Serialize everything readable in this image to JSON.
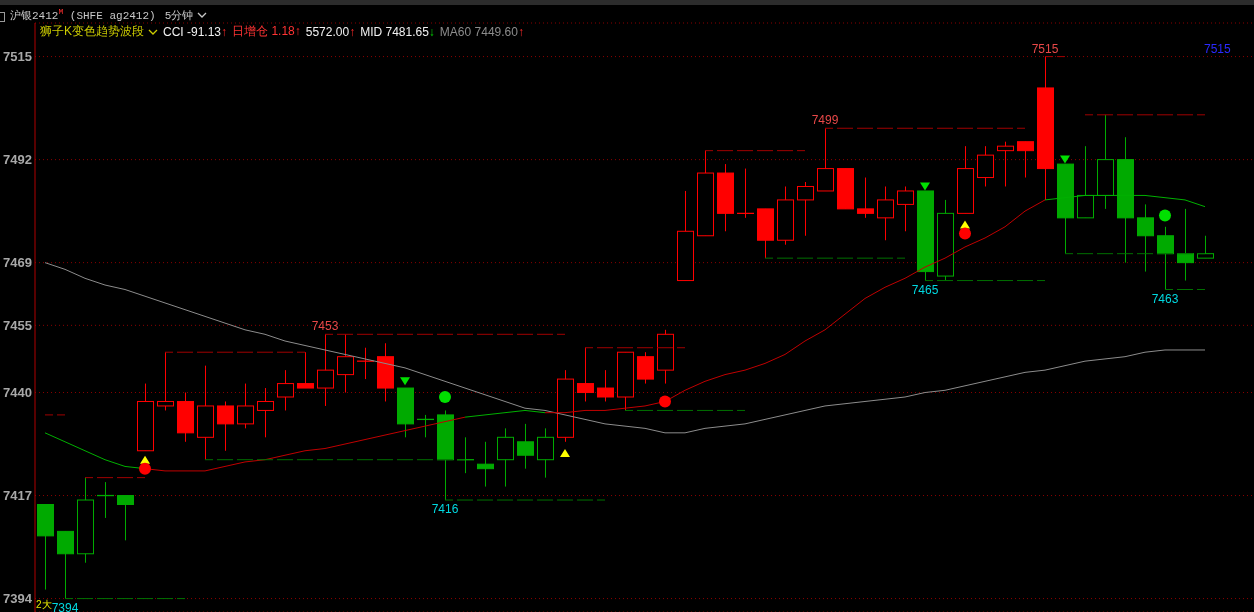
{
  "chart_data": {
    "type": "candlestick",
    "title": "沪银2412$^{M}$ (SHFE ag2412)",
    "subtitle": "5分钟",
    "categories": [
      null,
      null,
      null,
      null,
      null,
      null,
      null,
      null,
      null,
      null,
      null,
      null,
      null,
      null,
      null,
      null,
      null,
      null,
      null,
      null,
      null,
      null,
      null,
      null,
      null,
      null,
      null,
      null,
      null,
      null,
      null,
      null,
      null,
      null,
      null,
      null,
      null,
      null,
      null,
      null,
      null,
      null,
      null,
      null,
      null,
      null,
      null,
      null,
      null,
      null,
      null,
      null,
      null,
      null,
      null,
      null,
      null,
      null,
      null
    ],
    "ohlc": [
      [
        7415,
        7415,
        7396,
        7408
      ],
      [
        7409,
        7409,
        7394,
        7404
      ],
      [
        7404,
        7421,
        7402,
        7416
      ],
      [
        7417,
        7420,
        7412,
        7417
      ],
      [
        7417,
        7417,
        7407,
        7415
      ],
      [
        7427,
        7442,
        7427,
        7438
      ],
      [
        7437,
        7449,
        7436,
        7438
      ],
      [
        7438,
        7440,
        7429,
        7431
      ],
      [
        7430,
        7446,
        7425,
        7437
      ],
      [
        7437,
        7438,
        7427,
        7433
      ],
      [
        7433,
        7442,
        7432,
        7437
      ],
      [
        7436,
        7441,
        7430,
        7438
      ],
      [
        7439,
        7445,
        7436,
        7442
      ],
      [
        7442,
        7449,
        7441,
        7441
      ],
      [
        7441,
        7453,
        7437,
        7445
      ],
      [
        7444,
        7453,
        7440,
        7448
      ],
      [
        7447,
        7450,
        7443,
        7447
      ],
      [
        7448,
        7451,
        7438,
        7441
      ],
      [
        7441,
        7441,
        7430,
        7433
      ],
      [
        7434,
        7435,
        7430,
        7434
      ],
      [
        7435,
        7436,
        7416,
        7425
      ],
      [
        7425,
        7430,
        7422,
        7425
      ],
      [
        7424,
        7429,
        7419,
        7423
      ],
      [
        7425,
        7432,
        7419,
        7430
      ],
      [
        7429,
        7433,
        7423,
        7426
      ],
      [
        7425,
        7432,
        7421,
        7430
      ],
      [
        7430,
        7445,
        7429,
        7443
      ],
      [
        7442,
        7450,
        7438,
        7440
      ],
      [
        7441,
        7445,
        7438,
        7439
      ],
      [
        7439,
        7449,
        7436,
        7449
      ],
      [
        7448,
        7449,
        7442,
        7443
      ],
      [
        7445,
        7454,
        7442,
        7453
      ],
      [
        7465,
        7485,
        7465,
        7476
      ],
      [
        7475,
        7494,
        7475,
        7489
      ],
      [
        7489,
        7491,
        7476,
        7480
      ],
      [
        7480,
        7490,
        7479,
        7480
      ],
      [
        7481,
        7481,
        7470,
        7474
      ],
      [
        7474,
        7486,
        7473,
        7483
      ],
      [
        7483,
        7487,
        7475,
        7486
      ],
      [
        7485,
        7499,
        7485,
        7490
      ],
      [
        7490,
        7490,
        7481,
        7481
      ],
      [
        7481,
        7488,
        7479,
        7480
      ],
      [
        7479,
        7486,
        7474,
        7483
      ],
      [
        7482,
        7486,
        7476,
        7485
      ],
      [
        7485,
        7485,
        7465,
        7467
      ],
      [
        7466,
        7483,
        7465,
        7480
      ],
      [
        7480,
        7495,
        7480,
        7490
      ],
      [
        7488,
        7495,
        7486,
        7493
      ],
      [
        7494,
        7496,
        7486,
        7495
      ],
      [
        7496,
        7496,
        7488,
        7494
      ],
      [
        7508,
        7515,
        7483,
        7490
      ],
      [
        7491,
        7491,
        7471,
        7479
      ],
      [
        7479,
        7495,
        7479,
        7484
      ],
      [
        7484,
        7502,
        7481,
        7492
      ],
      [
        7492,
        7497,
        7469,
        7479
      ],
      [
        7479,
        7482,
        7467,
        7475
      ],
      [
        7475,
        7477,
        7463,
        7471
      ],
      [
        7471,
        7481,
        7465,
        7469
      ],
      [
        7470,
        7475,
        7470,
        7471
      ]
    ],
    "colors": [
      "#00aa00",
      "#00aa00",
      "#00aa00",
      "#00aa00",
      "#00aa00",
      "#ff0000",
      "#ff0000",
      "#ff0000",
      "#ff0000",
      "#ff0000",
      "#ff0000",
      "#ff0000",
      "#ff0000",
      "#ff0000",
      "#ff0000",
      "#ff0000",
      "#ff0000",
      "#ff0000",
      "#00aa00",
      "#00aa00",
      "#00aa00",
      "#00aa00",
      "#00aa00",
      "#00aa00",
      "#00aa00",
      "#00aa00",
      "#ff0000",
      "#ff0000",
      "#ff0000",
      "#ff0000",
      "#ff0000",
      "#ff0000",
      "#ff0000",
      "#ff0000",
      "#ff0000",
      "#ff0000",
      "#ff0000",
      "#ff0000",
      "#ff0000",
      "#ff0000",
      "#ff0000",
      "#ff0000",
      "#ff0000",
      "#ff0000",
      "#00aa00",
      "#00aa00",
      "#ff0000",
      "#ff0000",
      "#ff0000",
      "#ff0000",
      "#ff0000",
      "#00aa00",
      "#00aa00",
      "#00aa00",
      "#00aa00",
      "#00aa00",
      "#00aa00",
      "#00aa00",
      "#00aa00"
    ],
    "series": [
      {
        "type": "line",
        "color": "#8c8c8c",
        "line_style": "solid",
        "values": [
          7469,
          7467.5,
          7465.5,
          7464,
          7463,
          7461.5,
          7460,
          7458.5,
          7457,
          7455.5,
          7454,
          7453,
          7451.5,
          7450.5,
          7449.5,
          7448.5,
          7447.5,
          7446.5,
          7445.5,
          7444,
          7442.5,
          7441,
          7439.5,
          7438,
          7436.5,
          7436,
          7435,
          7434,
          7433,
          7432.5,
          7432,
          7431,
          7431,
          7432,
          7432.5,
          7433,
          7434,
          7435,
          7436,
          7437,
          7437.5,
          7438,
          7438.5,
          7439,
          7440,
          7440.5,
          7441.5,
          7442.5,
          7443.5,
          7444.5,
          7445,
          7446,
          7447,
          7447.5,
          7448,
          7449,
          7449.5,
          7449.5,
          7449.5
        ]
      },
      {
        "type": "line",
        "color": "#c00000",
        "line_style": "solid",
        "values": [
          null,
          null,
          null,
          null,
          null,
          7423,
          7422.5,
          7422.5,
          7422.5,
          7423.5,
          7424.5,
          7425,
          7426,
          7427,
          7427.5,
          7428.5,
          7429.5,
          7430.5,
          7431.5,
          7432.5,
          7433.5,
          7434.5,
          null,
          null,
          null,
          7435.5,
          7435.5,
          7436,
          7436,
          7436.5,
          7437,
          7438,
          7440.5,
          7442.5,
          7444,
          7445,
          7446.5,
          7448.5,
          7451.5,
          7454,
          7457.5,
          7461,
          7463.5,
          7465.5,
          7468,
          7470,
          7472.5,
          7474.5,
          7477,
          7480.5,
          7483,
          null,
          null,
          null,
          null,
          null,
          null,
          null,
          null
        ]
      },
      {
        "type": "line",
        "color": "#00b000",
        "line_style": "solid",
        "values": [
          7431,
          7429,
          7427,
          7425,
          7423.5,
          7423,
          null,
          null,
          null,
          null,
          null,
          null,
          null,
          null,
          null,
          null,
          null,
          null,
          null,
          null,
          null,
          7434.5,
          7435,
          7435.5,
          7436,
          7435.5,
          null,
          null,
          null,
          null,
          null,
          null,
          null,
          null,
          null,
          null,
          null,
          null,
          null,
          null,
          null,
          null,
          null,
          null,
          null,
          null,
          null,
          null,
          null,
          null,
          7483,
          7483.5,
          7484,
          7484,
          7484,
          7484,
          7483.5,
          7483,
          7481.5
        ]
      },
      {
        "type": "line",
        "color": "#a00000",
        "line_style": "dashed",
        "values": [
          7435,
          7435,
          null,
          null,
          null,
          null,
          null,
          null,
          null,
          null,
          null,
          null,
          null,
          null,
          null,
          null,
          null,
          null,
          null,
          null,
          null,
          null,
          null,
          null,
          null,
          null,
          null,
          null,
          null,
          null,
          null,
          null,
          null,
          null,
          null,
          null,
          null,
          null,
          null,
          null,
          null,
          null,
          null,
          null,
          null,
          null,
          null,
          null,
          null,
          null,
          null,
          null,
          null,
          null,
          null,
          null,
          null,
          null,
          null
        ]
      },
      {
        "type": "line",
        "color": "#a00000",
        "line_style": "dashed",
        "values": [
          null,
          null,
          7421,
          7421,
          7421,
          7421,
          null,
          null,
          null,
          null,
          null,
          null,
          null,
          null,
          null,
          null,
          null,
          null,
          null,
          null,
          null,
          null,
          null,
          null,
          null,
          null,
          null,
          null,
          null,
          null,
          null,
          null,
          null,
          null,
          null,
          null,
          null,
          null,
          null,
          null,
          null,
          null,
          null,
          null,
          null,
          null,
          null,
          null,
          null,
          null,
          null,
          null,
          null,
          null,
          null,
          null,
          null,
          null,
          null
        ]
      },
      {
        "type": "line",
        "color": "#a00000",
        "line_style": "dashed",
        "values": [
          null,
          null,
          null,
          null,
          null,
          null,
          7449,
          7449,
          7449,
          7449,
          7449,
          7449,
          7449,
          7449,
          null,
          null,
          null,
          null,
          null,
          null,
          null,
          null,
          null,
          null,
          null,
          null,
          null,
          null,
          null,
          null,
          null,
          null,
          null,
          null,
          null,
          null,
          null,
          null,
          null,
          null,
          null,
          null,
          null,
          null,
          null,
          null,
          null,
          null,
          null,
          null,
          null,
          null,
          null,
          null,
          null,
          null,
          null,
          null,
          null
        ]
      },
      {
        "type": "line",
        "color": "#a00000",
        "line_style": "dashed",
        "values": [
          null,
          null,
          null,
          null,
          null,
          null,
          null,
          null,
          null,
          null,
          null,
          null,
          null,
          null,
          7453,
          7453,
          7453,
          7453,
          7453,
          7453,
          7453,
          7453,
          7453,
          7453,
          7453,
          7453,
          7453,
          null,
          null,
          null,
          null,
          null,
          null,
          null,
          null,
          null,
          null,
          null,
          null,
          null,
          null,
          null,
          null,
          null,
          null,
          null,
          null,
          null,
          null,
          null,
          null,
          null,
          null,
          null,
          null,
          null,
          null,
          null,
          null
        ],
        "value_labels": [
          null,
          null,
          null,
          null,
          null,
          null,
          null,
          null,
          null,
          null,
          null,
          null,
          null,
          null,
          "7453",
          null,
          null,
          null,
          null,
          null,
          null,
          null,
          null,
          null,
          null,
          null,
          null,
          null,
          null,
          null,
          null,
          null,
          null,
          null,
          null,
          null,
          null,
          null,
          null,
          null,
          null,
          null,
          null,
          null,
          null,
          null,
          null,
          null,
          null,
          null,
          null,
          null,
          null,
          null,
          null,
          null,
          null,
          null,
          null
        ]
      },
      {
        "type": "line",
        "color": "#a00000",
        "line_style": "dashed",
        "values": [
          null,
          null,
          null,
          null,
          null,
          null,
          null,
          null,
          null,
          null,
          null,
          null,
          null,
          null,
          null,
          null,
          null,
          null,
          null,
          null,
          null,
          null,
          null,
          null,
          null,
          null,
          null,
          7450,
          7450,
          7450,
          7450,
          7450,
          7450,
          null,
          null,
          null,
          null,
          null,
          null,
          null,
          null,
          null,
          null,
          null,
          null,
          null,
          null,
          null,
          null,
          null,
          null,
          null,
          null,
          null,
          null,
          null,
          null,
          null,
          null
        ]
      },
      {
        "type": "line",
        "color": "#a00000",
        "line_style": "dashed",
        "values": [
          null,
          null,
          null,
          null,
          null,
          null,
          null,
          null,
          null,
          null,
          null,
          null,
          null,
          null,
          null,
          null,
          null,
          null,
          null,
          null,
          null,
          null,
          null,
          null,
          null,
          null,
          null,
          null,
          null,
          null,
          null,
          null,
          null,
          7494,
          7494,
          7494,
          7494,
          7494,
          7494,
          null,
          null,
          null,
          null,
          null,
          null,
          null,
          null,
          null,
          null,
          null,
          null,
          null,
          null,
          null,
          null,
          null,
          null,
          null,
          null
        ]
      },
      {
        "type": "line",
        "color": "#a00000",
        "line_style": "dashed",
        "values": [
          null,
          null,
          null,
          null,
          null,
          null,
          null,
          null,
          null,
          null,
          null,
          null,
          null,
          null,
          null,
          null,
          null,
          null,
          null,
          null,
          null,
          null,
          null,
          null,
          null,
          null,
          null,
          null,
          null,
          null,
          null,
          null,
          null,
          null,
          null,
          null,
          null,
          null,
          null,
          7499,
          7499,
          7499,
          7499,
          7499,
          7499,
          7499,
          7499,
          7499,
          7499,
          7499,
          null,
          null,
          null,
          null,
          null,
          null,
          null,
          null,
          null
        ],
        "value_labels": [
          null,
          null,
          null,
          null,
          null,
          null,
          null,
          null,
          null,
          null,
          null,
          null,
          null,
          null,
          null,
          null,
          null,
          null,
          null,
          null,
          null,
          null,
          null,
          null,
          null,
          null,
          null,
          null,
          null,
          null,
          null,
          null,
          null,
          null,
          null,
          null,
          null,
          null,
          null,
          "7499",
          null,
          null,
          null,
          null,
          null,
          null,
          null,
          null,
          null,
          null,
          null,
          null,
          null,
          null,
          null,
          null,
          null,
          null,
          null
        ]
      },
      {
        "type": "line",
        "color": "#a00000",
        "line_style": "dashed",
        "values": [
          null,
          null,
          null,
          null,
          null,
          null,
          null,
          null,
          null,
          null,
          null,
          null,
          null,
          null,
          null,
          null,
          null,
          null,
          null,
          null,
          null,
          null,
          null,
          null,
          null,
          null,
          null,
          null,
          null,
          null,
          null,
          null,
          null,
          null,
          null,
          null,
          null,
          null,
          null,
          null,
          null,
          null,
          null,
          null,
          null,
          null,
          null,
          null,
          null,
          null,
          7515,
          7515,
          null,
          null,
          null,
          null,
          null,
          null,
          null
        ],
        "value_labels": [
          null,
          null,
          null,
          null,
          null,
          null,
          null,
          null,
          null,
          null,
          null,
          null,
          null,
          null,
          null,
          null,
          null,
          null,
          null,
          null,
          null,
          null,
          null,
          null,
          null,
          null,
          null,
          null,
          null,
          null,
          null,
          null,
          null,
          null,
          null,
          null,
          null,
          null,
          null,
          null,
          null,
          null,
          null,
          null,
          null,
          null,
          null,
          null,
          null,
          null,
          "7515",
          null,
          null,
          null,
          null,
          null,
          null,
          null,
          null
        ]
      },
      {
        "type": "line",
        "color": "#a00000",
        "line_style": "dashed",
        "values": [
          null,
          null,
          null,
          null,
          null,
          null,
          null,
          null,
          null,
          null,
          null,
          null,
          null,
          null,
          null,
          null,
          null,
          null,
          null,
          null,
          null,
          null,
          null,
          null,
          null,
          null,
          null,
          null,
          null,
          null,
          null,
          null,
          null,
          null,
          null,
          null,
          null,
          null,
          null,
          null,
          null,
          null,
          null,
          null,
          null,
          null,
          null,
          null,
          null,
          null,
          null,
          null,
          7502,
          7502,
          7502,
          7502,
          7502,
          7502,
          7502
        ]
      },
      {
        "type": "line",
        "color": "#007000",
        "line_style": "dashed",
        "values": [
          null,
          7394,
          7394,
          7394,
          7394,
          7394,
          7394,
          7394,
          null,
          null,
          null,
          null,
          null,
          null,
          null,
          null,
          null,
          null,
          null,
          null,
          null,
          null,
          null,
          null,
          null,
          null,
          null,
          null,
          null,
          null,
          null,
          null,
          null,
          null,
          null,
          null,
          null,
          null,
          null,
          null,
          null,
          null,
          null,
          null,
          null,
          null,
          null,
          null,
          null,
          null,
          null,
          null,
          null,
          null,
          null,
          null,
          null,
          null,
          null
        ],
        "value_labels": [
          null,
          "7394",
          null,
          null,
          null,
          null,
          null,
          null,
          null,
          null,
          null,
          null,
          null,
          null,
          null,
          null,
          null,
          null,
          null,
          null,
          null,
          null,
          null,
          null,
          null,
          null,
          null,
          null,
          null,
          null,
          null,
          null,
          null,
          null,
          null,
          null,
          null,
          null,
          null,
          null,
          null,
          null,
          null,
          null,
          null,
          null,
          null,
          null,
          null,
          null,
          null,
          null,
          null,
          null,
          null,
          null,
          null,
          null,
          null
        ]
      },
      {
        "type": "line",
        "color": "#007000",
        "line_style": "dashed",
        "values": [
          null,
          null,
          null,
          null,
          null,
          null,
          null,
          null,
          7425,
          7425,
          7425,
          7425,
          7425,
          7425,
          7425,
          7425,
          7425,
          7425,
          7425,
          7425,
          7425,
          7425,
          null,
          null,
          null,
          null,
          null,
          null,
          null,
          null,
          null,
          null,
          null,
          null,
          null,
          null,
          null,
          null,
          null,
          null,
          null,
          null,
          null,
          null,
          null,
          null,
          null,
          null,
          null,
          null,
          null,
          null,
          null,
          null,
          null,
          null,
          null,
          null,
          null
        ]
      },
      {
        "type": "line",
        "color": "#007000",
        "line_style": "dashed",
        "values": [
          null,
          null,
          null,
          null,
          null,
          null,
          null,
          null,
          null,
          null,
          null,
          null,
          null,
          null,
          null,
          null,
          null,
          null,
          null,
          null,
          7416,
          7416,
          7416,
          7416,
          7416,
          7416,
          7416,
          7416,
          7416,
          null,
          null,
          null,
          null,
          null,
          null,
          null,
          null,
          null,
          null,
          null,
          null,
          null,
          null,
          null,
          null,
          null,
          null,
          null,
          null,
          null,
          null,
          null,
          null,
          null,
          null,
          null,
          null,
          null,
          null
        ],
        "value_labels": [
          null,
          null,
          null,
          null,
          null,
          null,
          null,
          null,
          null,
          null,
          null,
          null,
          null,
          null,
          null,
          null,
          null,
          null,
          null,
          null,
          "7416",
          null,
          null,
          null,
          null,
          null,
          null,
          null,
          null,
          null,
          null,
          null,
          null,
          null,
          null,
          null,
          null,
          null,
          null,
          null,
          null,
          null,
          null,
          null,
          null,
          null,
          null,
          null,
          null,
          null,
          null,
          null,
          null,
          null,
          null,
          null,
          null,
          null,
          null
        ]
      },
      {
        "type": "line",
        "color": "#007000",
        "line_style": "dashed",
        "values": [
          null,
          null,
          null,
          null,
          null,
          null,
          null,
          null,
          null,
          null,
          null,
          null,
          null,
          null,
          null,
          null,
          null,
          null,
          null,
          null,
          null,
          null,
          null,
          null,
          null,
          null,
          null,
          null,
          null,
          7436,
          7436,
          7436,
          7436,
          7436,
          7436,
          7436,
          null,
          null,
          null,
          null,
          null,
          null,
          null,
          null,
          null,
          null,
          null,
          null,
          null,
          null,
          null,
          null,
          null,
          null,
          null,
          null,
          null,
          null,
          null
        ]
      },
      {
        "type": "line",
        "color": "#007000",
        "line_style": "dashed",
        "values": [
          null,
          null,
          null,
          null,
          null,
          null,
          null,
          null,
          null,
          null,
          null,
          null,
          null,
          null,
          null,
          null,
          null,
          null,
          null,
          null,
          null,
          null,
          null,
          null,
          null,
          null,
          null,
          null,
          null,
          null,
          null,
          null,
          null,
          null,
          null,
          null,
          7470,
          7470,
          7470,
          7470,
          7470,
          7470,
          7470,
          7470,
          null,
          null,
          null,
          null,
          null,
          null,
          null,
          null,
          null,
          null,
          null,
          null,
          null,
          null,
          null
        ]
      },
      {
        "type": "line",
        "color": "#007000",
        "line_style": "dashed",
        "values": [
          null,
          null,
          null,
          null,
          null,
          null,
          null,
          null,
          null,
          null,
          null,
          null,
          null,
          null,
          null,
          null,
          null,
          null,
          null,
          null,
          null,
          null,
          null,
          null,
          null,
          null,
          null,
          null,
          null,
          null,
          null,
          null,
          null,
          null,
          null,
          null,
          null,
          null,
          null,
          null,
          null,
          null,
          null,
          null,
          7465,
          7465,
          7465,
          7465,
          7465,
          7465,
          7465,
          null,
          null,
          null,
          null,
          null,
          null,
          null,
          null
        ],
        "value_labels": [
          null,
          null,
          null,
          null,
          null,
          null,
          null,
          null,
          null,
          null,
          null,
          null,
          null,
          null,
          null,
          null,
          null,
          null,
          null,
          null,
          null,
          null,
          null,
          null,
          null,
          null,
          null,
          null,
          null,
          null,
          null,
          null,
          null,
          null,
          null,
          null,
          null,
          null,
          null,
          null,
          null,
          null,
          null,
          null,
          "7465",
          null,
          null,
          null,
          null,
          null,
          null,
          null,
          null,
          null,
          null,
          null,
          null,
          null,
          null
        ]
      },
      {
        "type": "line",
        "color": "#007000",
        "line_style": "dashed",
        "values": [
          null,
          null,
          null,
          null,
          null,
          null,
          null,
          null,
          null,
          null,
          null,
          null,
          null,
          null,
          null,
          null,
          null,
          null,
          null,
          null,
          null,
          null,
          null,
          null,
          null,
          null,
          null,
          null,
          null,
          null,
          null,
          null,
          null,
          null,
          null,
          null,
          null,
          null,
          null,
          null,
          null,
          null,
          null,
          null,
          null,
          null,
          null,
          null,
          null,
          null,
          null,
          7471,
          7471,
          7471,
          7471,
          7471,
          7471,
          7471,
          7471
        ]
      },
      {
        "type": "line",
        "color": "#007000",
        "line_style": "dashed",
        "values": [
          null,
          null,
          null,
          null,
          null,
          null,
          null,
          null,
          null,
          null,
          null,
          null,
          null,
          null,
          null,
          null,
          null,
          null,
          null,
          null,
          null,
          null,
          null,
          null,
          null,
          null,
          null,
          null,
          null,
          null,
          null,
          null,
          null,
          null,
          null,
          null,
          null,
          null,
          null,
          null,
          null,
          null,
          null,
          null,
          null,
          null,
          null,
          null,
          null,
          null,
          null,
          null,
          null,
          null,
          null,
          null,
          7463,
          7463,
          7463
        ],
        "value_labels": [
          null,
          null,
          null,
          null,
          null,
          null,
          null,
          null,
          null,
          null,
          null,
          null,
          null,
          null,
          null,
          null,
          null,
          null,
          null,
          null,
          null,
          null,
          null,
          null,
          null,
          null,
          null,
          null,
          null,
          null,
          null,
          null,
          null,
          null,
          null,
          null,
          null,
          null,
          null,
          null,
          null,
          null,
          null,
          null,
          null,
          null,
          null,
          null,
          null,
          null,
          null,
          null,
          null,
          null,
          null,
          null,
          "7463",
          null,
          null
        ]
      },
      {
        "type": "scatter",
        "color": "#ffff00",
        "marker": "triangle",
        "values": [
          null,
          null,
          null,
          null,
          null,
          7425,
          null,
          null,
          null,
          null,
          null,
          null,
          null,
          null,
          null,
          null,
          null,
          null,
          null,
          null,
          null,
          null,
          null,
          null,
          null,
          null,
          7426.5,
          null,
          null,
          null,
          null,
          null,
          null,
          null,
          null,
          null,
          null,
          null,
          null,
          null,
          null,
          null,
          null,
          null,
          null,
          null,
          7477.5,
          null,
          null,
          null,
          null,
          null,
          null,
          null,
          null,
          null,
          null,
          null,
          null
        ]
      },
      {
        "type": "scatter",
        "color": "#00e000",
        "marker": "triangle",
        "values": [
          null,
          null,
          null,
          null,
          null,
          null,
          null,
          null,
          null,
          null,
          null,
          null,
          null,
          null,
          null,
          null,
          null,
          null,
          7442.5,
          null,
          null,
          null,
          null,
          null,
          null,
          null,
          null,
          null,
          null,
          null,
          null,
          null,
          null,
          null,
          null,
          null,
          null,
          null,
          null,
          null,
          null,
          null,
          null,
          null,
          7486,
          null,
          null,
          null,
          null,
          null,
          null,
          7492,
          null,
          null,
          null,
          null,
          null,
          null,
          null
        ]
      },
      {
        "type": "scatter",
        "color": "#ff0000",
        "marker": "circle",
        "values": [
          null,
          null,
          null,
          null,
          null,
          7423,
          null,
          null,
          null,
          null,
          null,
          null,
          null,
          null,
          null,
          null,
          null,
          null,
          null,
          null,
          null,
          null,
          null,
          null,
          null,
          null,
          null,
          null,
          null,
          null,
          null,
          7438,
          null,
          null,
          null,
          null,
          null,
          null,
          null,
          null,
          null,
          null,
          null,
          null,
          null,
          null,
          7475.5,
          null,
          null,
          null,
          null,
          null,
          null,
          null,
          null,
          null,
          null,
          null,
          null
        ]
      },
      {
        "type": "scatter",
        "color": "#00e000",
        "marker": "circle",
        "values": [
          null,
          null,
          null,
          null,
          null,
          null,
          null,
          null,
          null,
          null,
          null,
          null,
          null,
          null,
          null,
          null,
          null,
          null,
          null,
          null,
          7439,
          null,
          null,
          null,
          null,
          null,
          null,
          null,
          null,
          null,
          null,
          null,
          null,
          null,
          null,
          null,
          null,
          null,
          null,
          null,
          null,
          null,
          null,
          null,
          null,
          null,
          null,
          null,
          null,
          null,
          null,
          null,
          null,
          null,
          null,
          null,
          7479.5,
          null,
          null
        ]
      }
    ],
    "ylim": [
      7391,
      7522.5
    ],
    "yticks": [
      7394,
      7417,
      7440,
      7455,
      7469,
      7492,
      7515
    ],
    "grid": "y",
    "tick_labels": "y",
    "annotations": [
      "狮子K变色趋势波段",
      "CCI -91.13↑",
      "日增仓 1.18↑",
      "5572.00↑",
      "MID 7481.65↓",
      "MA60 7449.60↑",
      "7515",
      "2大"
    ]
  }
}
